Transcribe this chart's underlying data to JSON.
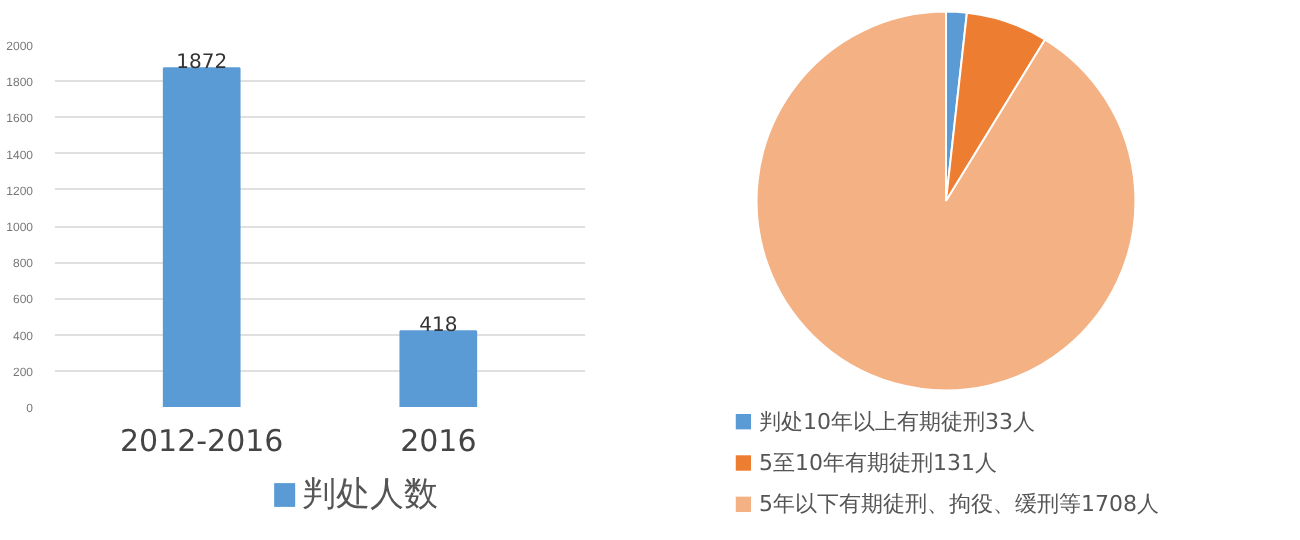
{
  "chart_data": [
    {
      "type": "bar",
      "categories": [
        "2012-2016",
        "2016"
      ],
      "series": [
        {
          "name": "判处人数",
          "color": "#5b9bd5",
          "values": [
            1872,
            418
          ]
        }
      ],
      "ylim": [
        0,
        2000
      ],
      "yticks": [
        0,
        200,
        400,
        600,
        800,
        1000,
        1200,
        1400,
        1600,
        1800,
        2000
      ],
      "grid": "y",
      "legend": "bottom",
      "data_labels": true
    },
    {
      "type": "pie",
      "categories": [
        "判处10年以上有期徒刑33人",
        "5至10年有期徒刑131人",
        "5年以下有期徒刑、拘役、缓刑等1708人"
      ],
      "values": [
        33,
        131,
        1708
      ],
      "colors": [
        "#5b9bd5",
        "#ed7d31",
        "#f4b183"
      ],
      "legend": "bottom"
    }
  ]
}
